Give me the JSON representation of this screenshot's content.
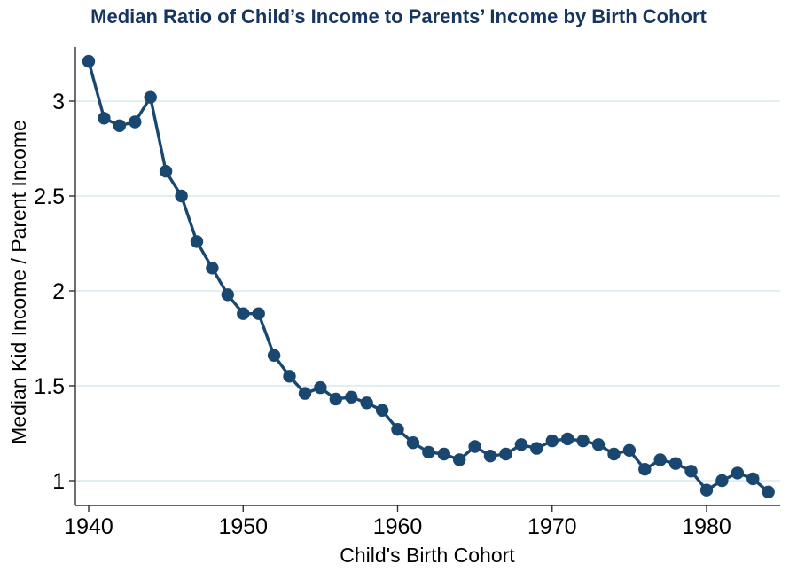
{
  "title": "Median Ratio of Child’s Income to Parents’ Income by Birth Cohort",
  "axes": {
    "x_label": "Child's Birth Cohort",
    "y_label": "Median Kid Income / Parent Income",
    "x_ticks": [
      1940,
      1950,
      1960,
      1970,
      1980
    ],
    "y_ticks": [
      1,
      1.5,
      2,
      2.5,
      3
    ]
  },
  "colors": {
    "series": "#1a476f",
    "gridline": "#e2eff2",
    "axis": "#303030",
    "title": "#17365d",
    "tick_text": "#000000",
    "background": "#ffffff"
  },
  "chart_data": {
    "type": "line",
    "title": "Median Ratio of Child’s Income to Parents’ Income by Birth Cohort",
    "xlabel": "Child's Birth Cohort",
    "ylabel": "Median Kid Income / Parent Income",
    "legend": "none",
    "grid": "horizontal-only",
    "marker": "filled-circle",
    "xlim": [
      1939,
      1985
    ],
    "ylim": [
      0.87,
      3.3
    ],
    "x_tick_values": [
      1940,
      1950,
      1960,
      1970,
      1980
    ],
    "y_tick_values": [
      1,
      1.5,
      2,
      2.5,
      3
    ],
    "x": [
      1940,
      1941,
      1942,
      1943,
      1944,
      1945,
      1946,
      1947,
      1948,
      1949,
      1950,
      1951,
      1952,
      1953,
      1954,
      1955,
      1956,
      1957,
      1958,
      1959,
      1960,
      1961,
      1962,
      1963,
      1964,
      1965,
      1966,
      1967,
      1968,
      1969,
      1970,
      1971,
      1972,
      1973,
      1974,
      1975,
      1976,
      1977,
      1978,
      1979,
      1980,
      1981,
      1982,
      1983,
      1984
    ],
    "values": [
      3.21,
      2.91,
      2.87,
      2.89,
      3.02,
      2.63,
      2.5,
      2.26,
      2.12,
      1.98,
      1.88,
      1.88,
      1.66,
      1.55,
      1.46,
      1.49,
      1.43,
      1.44,
      1.41,
      1.37,
      1.27,
      1.2,
      1.15,
      1.14,
      1.11,
      1.18,
      1.13,
      1.14,
      1.19,
      1.17,
      1.21,
      1.22,
      1.21,
      1.19,
      1.14,
      1.16,
      1.06,
      1.11,
      1.09,
      1.05,
      0.95,
      1.0,
      1.04,
      1.01,
      0.94
    ]
  }
}
